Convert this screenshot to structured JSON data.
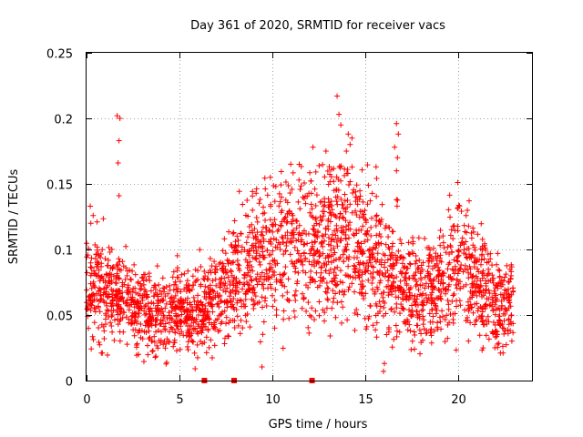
{
  "chart_data": {
    "type": "scatter",
    "title": "Day 361 of 2020, SRMTID for receiver vacs",
    "xlabel": "GPS time / hours",
    "ylabel": "SRMTID / TECUs",
    "xlim": [
      0,
      24
    ],
    "ylim": [
      0,
      0.25
    ],
    "xticks": [
      0,
      5,
      10,
      15,
      20
    ],
    "xtick_labels": [
      "0",
      "5",
      "10",
      "15",
      "20"
    ],
    "yticks": [
      0,
      0.05,
      0.1,
      0.15,
      0.2,
      0.25
    ],
    "ytick_labels": [
      "0",
      "0.05",
      "0.1",
      "0.15",
      "0.2",
      "0.25"
    ],
    "grid": true,
    "marker": "plus",
    "series_color": "#ff0000",
    "trend": [
      {
        "x": 0,
        "y": 0.07
      },
      {
        "x": 0.5,
        "y": 0.075
      },
      {
        "x": 1,
        "y": 0.065
      },
      {
        "x": 2,
        "y": 0.06
      },
      {
        "x": 3,
        "y": 0.055
      },
      {
        "x": 4,
        "y": 0.05
      },
      {
        "x": 5,
        "y": 0.055
      },
      {
        "x": 6,
        "y": 0.055
      },
      {
        "x": 7,
        "y": 0.06
      },
      {
        "x": 8,
        "y": 0.075
      },
      {
        "x": 9,
        "y": 0.09
      },
      {
        "x": 10,
        "y": 0.1
      },
      {
        "x": 11,
        "y": 0.1
      },
      {
        "x": 12,
        "y": 0.1
      },
      {
        "x": 13,
        "y": 0.105
      },
      {
        "x": 14,
        "y": 0.11
      },
      {
        "x": 15,
        "y": 0.1
      },
      {
        "x": 16,
        "y": 0.085
      },
      {
        "x": 17,
        "y": 0.075
      },
      {
        "x": 18,
        "y": 0.065
      },
      {
        "x": 19,
        "y": 0.075
      },
      {
        "x": 20,
        "y": 0.09
      },
      {
        "x": 21,
        "y": 0.075
      },
      {
        "x": 22,
        "y": 0.06
      },
      {
        "x": 23,
        "y": 0.06
      }
    ],
    "outliers": [
      {
        "x": 1.65,
        "y": 0.202
      },
      {
        "x": 1.8,
        "y": 0.2
      },
      {
        "x": 1.75,
        "y": 0.183
      },
      {
        "x": 1.7,
        "y": 0.166
      },
      {
        "x": 1.75,
        "y": 0.141
      },
      {
        "x": 13.5,
        "y": 0.217
      },
      {
        "x": 13.6,
        "y": 0.203
      },
      {
        "x": 13.7,
        "y": 0.195
      },
      {
        "x": 14.1,
        "y": 0.188
      },
      {
        "x": 14.3,
        "y": 0.185
      },
      {
        "x": 14.2,
        "y": 0.18
      },
      {
        "x": 14.0,
        "y": 0.175
      },
      {
        "x": 16.7,
        "y": 0.196
      },
      {
        "x": 16.8,
        "y": 0.188
      },
      {
        "x": 16.6,
        "y": 0.178
      },
      {
        "x": 16.75,
        "y": 0.17
      },
      {
        "x": 16.7,
        "y": 0.16
      },
      {
        "x": 16.7,
        "y": 0.138
      },
      {
        "x": 12.2,
        "y": 0.178
      },
      {
        "x": 12.9,
        "y": 0.175
      },
      {
        "x": 11.0,
        "y": 0.165
      },
      {
        "x": 15.6,
        "y": 0.163
      },
      {
        "x": 20.0,
        "y": 0.151
      },
      {
        "x": 0.2,
        "y": 0.133
      },
      {
        "x": 0.8,
        "y": 0.021
      },
      {
        "x": 0.85,
        "y": 0.021
      },
      {
        "x": 2.8,
        "y": 0.02
      },
      {
        "x": 5.85,
        "y": 0.009
      },
      {
        "x": 16.0,
        "y": 0.007
      },
      {
        "x": 16.05,
        "y": 0.013
      },
      {
        "x": 22.0,
        "y": 0.025
      },
      {
        "x": 22.3,
        "y": 0.021
      }
    ],
    "zero_markers": [
      {
        "x": 6.35,
        "y": 0
      },
      {
        "x": 7.95,
        "y": 0
      },
      {
        "x": 12.15,
        "y": 0
      }
    ]
  }
}
